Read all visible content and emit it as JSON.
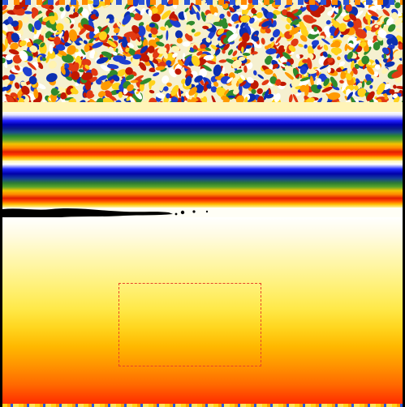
{
  "image": {
    "kind": "false-color-texture",
    "palette": {
      "white": "#ffffff",
      "yellow": "#ffe94a",
      "orange": "#ff8a00",
      "red": "#e02000",
      "green": "#2e8b2e",
      "blue": "#0000b0",
      "black": "#000000",
      "selection_outline": "#e8432a"
    }
  }
}
